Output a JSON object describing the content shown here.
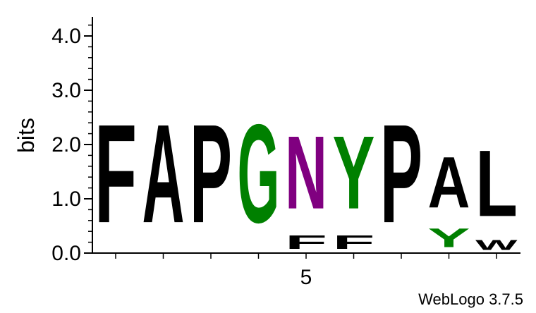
{
  "chart_data": {
    "type": "sequence-logo",
    "ylabel": "bits",
    "ylim": [
      0,
      4.3
    ],
    "yticks": [
      "0.0",
      "1.0",
      "2.0",
      "3.0",
      "4.0"
    ],
    "xtick_labels": [
      {
        "position": 5,
        "label": "5"
      }
    ],
    "positions": [
      1,
      2,
      3,
      4,
      5,
      6,
      7,
      8,
      9
    ],
    "colors": {
      "hydrophobic": "#000000",
      "polar": "#008000",
      "neutral": "#800080"
    },
    "columns": [
      {
        "position": 1,
        "letters": [
          {
            "letter": "F",
            "bits": 2.9,
            "color": "#000000"
          }
        ]
      },
      {
        "position": 2,
        "letters": [
          {
            "letter": "A",
            "bits": 2.9,
            "color": "#000000"
          }
        ]
      },
      {
        "position": 3,
        "letters": [
          {
            "letter": "P",
            "bits": 2.9,
            "color": "#000000"
          }
        ]
      },
      {
        "position": 4,
        "letters": [
          {
            "letter": "G",
            "bits": 2.9,
            "color": "#008000"
          }
        ]
      },
      {
        "position": 5,
        "letters": [
          {
            "letter": "F",
            "bits": 0.4,
            "color": "#000000"
          },
          {
            "letter": "N",
            "bits": 2.15,
            "color": "#800080"
          }
        ]
      },
      {
        "position": 6,
        "letters": [
          {
            "letter": "F",
            "bits": 0.4,
            "color": "#000000"
          },
          {
            "letter": "Y",
            "bits": 2.15,
            "color": "#008000"
          }
        ]
      },
      {
        "position": 7,
        "letters": [
          {
            "letter": "P",
            "bits": 2.9,
            "color": "#000000"
          }
        ]
      },
      {
        "position": 8,
        "letters": [
          {
            "letter": "Y",
            "bits": 0.55,
            "color": "#008000"
          },
          {
            "letter": "A",
            "bits": 1.5,
            "color": "#000000"
          }
        ]
      },
      {
        "position": 9,
        "letters": [
          {
            "letter": "W",
            "bits": 0.3,
            "color": "#000000"
          },
          {
            "letter": "L",
            "bits": 1.95,
            "color": "#000000"
          }
        ]
      }
    ]
  },
  "footer": "WebLogo 3.7.5"
}
